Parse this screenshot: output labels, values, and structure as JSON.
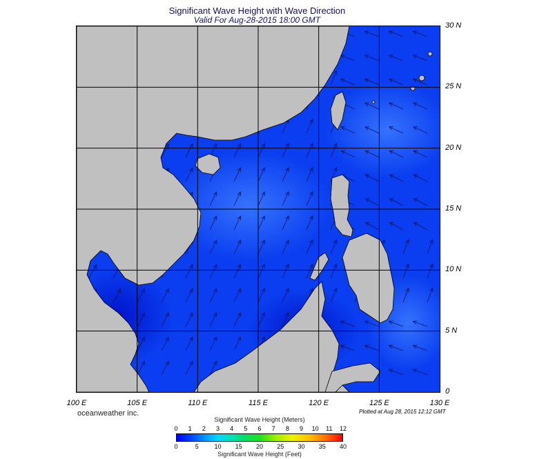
{
  "title": "Significant Wave Height with Wave Direction",
  "subtitle": "Valid For Aug-28-2015 18:00 GMT",
  "map": {
    "lat_labels": [
      "30 N",
      "25 N",
      "20 N",
      "15 N",
      "10 N",
      "5 N",
      "0"
    ],
    "lon_labels": [
      "100 E",
      "105 E",
      "110 E",
      "115 E",
      "120 E",
      "125 E",
      "130 E"
    ],
    "lat_range": [
      0,
      30
    ],
    "lon_range": [
      100,
      130
    ],
    "colors": {
      "land": "#c0c0c0",
      "ocean_base": "#0a3ef0",
      "ocean_light": "#2f6aff",
      "ocean_dark": "#0018d8",
      "grid": "#000000",
      "arrow": "#101060"
    }
  },
  "brand": "oceanweather inc.",
  "plotted": "Plotted at Aug 28, 2015 12:12 GMT",
  "colorbar": {
    "title_top": "Significant Wave Height (Meters)",
    "title_bottom": "Significant Wave Height (Feet)",
    "meters": [
      "0",
      "1",
      "2",
      "3",
      "4",
      "5",
      "6",
      "7",
      "8",
      "9",
      "10",
      "11",
      "12"
    ],
    "feet": [
      "0",
      "5",
      "10",
      "15",
      "20",
      "25",
      "30",
      "35",
      "40"
    ]
  }
}
